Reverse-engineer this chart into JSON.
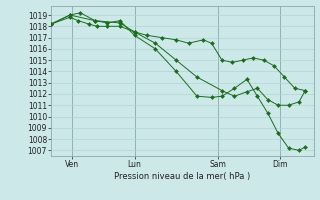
{
  "xlabel": "Pression niveau de la mer( hPa )",
  "bg_color": "#cce8e8",
  "grid_major_color": "#b0d4d4",
  "grid_minor_color": "#c4e0e0",
  "line_color": "#1a6e1a",
  "ylim": [
    1006.5,
    1019.8
  ],
  "yticks": [
    1007,
    1008,
    1009,
    1010,
    1011,
    1012,
    1013,
    1014,
    1015,
    1016,
    1017,
    1018,
    1019
  ],
  "day_labels": [
    "Ven",
    "Lun",
    "Sam",
    "Dim"
  ],
  "vline_positions": [
    0.5,
    2.0,
    4.0,
    5.5
  ],
  "xmin": 0.0,
  "xmax": 6.3,
  "series1_x": [
    0.0,
    0.45,
    0.65,
    0.9,
    1.1,
    1.35,
    1.65,
    2.0,
    2.3,
    2.65,
    3.0,
    3.3,
    3.65,
    3.85,
    4.1,
    4.35,
    4.6,
    4.85,
    5.1,
    5.35,
    5.6,
    5.85,
    6.1
  ],
  "series1_y": [
    1018.2,
    1018.8,
    1018.5,
    1018.2,
    1018.0,
    1018.0,
    1018.0,
    1017.5,
    1017.2,
    1017.0,
    1016.8,
    1016.5,
    1016.8,
    1016.5,
    1015.0,
    1014.8,
    1015.0,
    1015.2,
    1015.0,
    1014.5,
    1013.5,
    1012.5,
    1012.3
  ],
  "series2_x": [
    0.0,
    0.45,
    0.7,
    1.05,
    1.35,
    1.65,
    2.0,
    2.5,
    3.0,
    3.5,
    3.85,
    4.1,
    4.4,
    4.7,
    4.95,
    5.2,
    5.45,
    5.7,
    5.95,
    6.1
  ],
  "series2_y": [
    1018.2,
    1019.0,
    1019.2,
    1018.5,
    1018.3,
    1018.5,
    1017.2,
    1016.0,
    1014.0,
    1011.8,
    1011.7,
    1011.8,
    1012.5,
    1013.3,
    1011.8,
    1010.3,
    1008.5,
    1007.2,
    1007.0,
    1007.3
  ],
  "series3_x": [
    0.0,
    0.45,
    1.05,
    1.65,
    2.0,
    2.5,
    3.0,
    3.5,
    4.1,
    4.4,
    4.7,
    4.95,
    5.2,
    5.45,
    5.7,
    5.95,
    6.1
  ],
  "series3_y": [
    1018.2,
    1019.0,
    1018.5,
    1018.3,
    1017.5,
    1016.5,
    1015.0,
    1013.5,
    1012.3,
    1011.8,
    1012.2,
    1012.5,
    1011.5,
    1011.0,
    1011.0,
    1011.3,
    1012.3
  ]
}
